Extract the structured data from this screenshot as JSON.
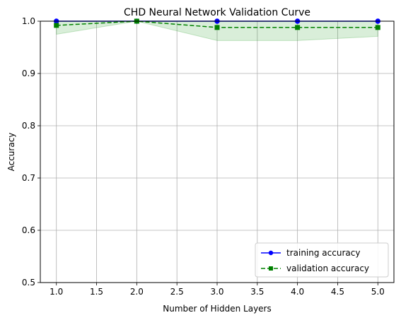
{
  "chart_data": {
    "type": "line",
    "title": "CHD Neural Network Validation Curve",
    "xlabel": "Number of Hidden Layers",
    "ylabel": "Accuracy",
    "xlim": [
      0.8,
      5.2
    ],
    "ylim": [
      0.5,
      1.0
    ],
    "x_ticks": [
      1.0,
      1.5,
      2.0,
      2.5,
      3.0,
      3.5,
      4.0,
      4.5,
      5.0
    ],
    "y_ticks": [
      0.5,
      0.6,
      0.7,
      0.8,
      0.9,
      1.0
    ],
    "grid": true,
    "legend_position": "lower-right",
    "x": [
      1,
      2,
      3,
      4,
      5
    ],
    "series": [
      {
        "name": "training accuracy",
        "values": [
          1.0,
          1.0,
          1.0,
          1.0,
          1.0
        ],
        "color": "#0000ff",
        "line_style": "solid",
        "marker": "circle",
        "band_lower": [
          1.0,
          1.0,
          1.0,
          1.0,
          1.0
        ],
        "band_upper": [
          1.0,
          1.0,
          1.0,
          1.0,
          1.0
        ],
        "band_color": "#0000ff"
      },
      {
        "name": "validation accuracy",
        "values": [
          0.992,
          1.0,
          0.988,
          0.988,
          0.988
        ],
        "color": "#008000",
        "line_style": "dashed",
        "marker": "square",
        "band_lower": [
          0.975,
          1.0,
          0.963,
          0.963,
          0.971
        ],
        "band_upper": [
          1.0,
          1.0,
          1.0,
          1.0,
          1.0
        ],
        "band_color": "#2ca02c"
      }
    ]
  }
}
